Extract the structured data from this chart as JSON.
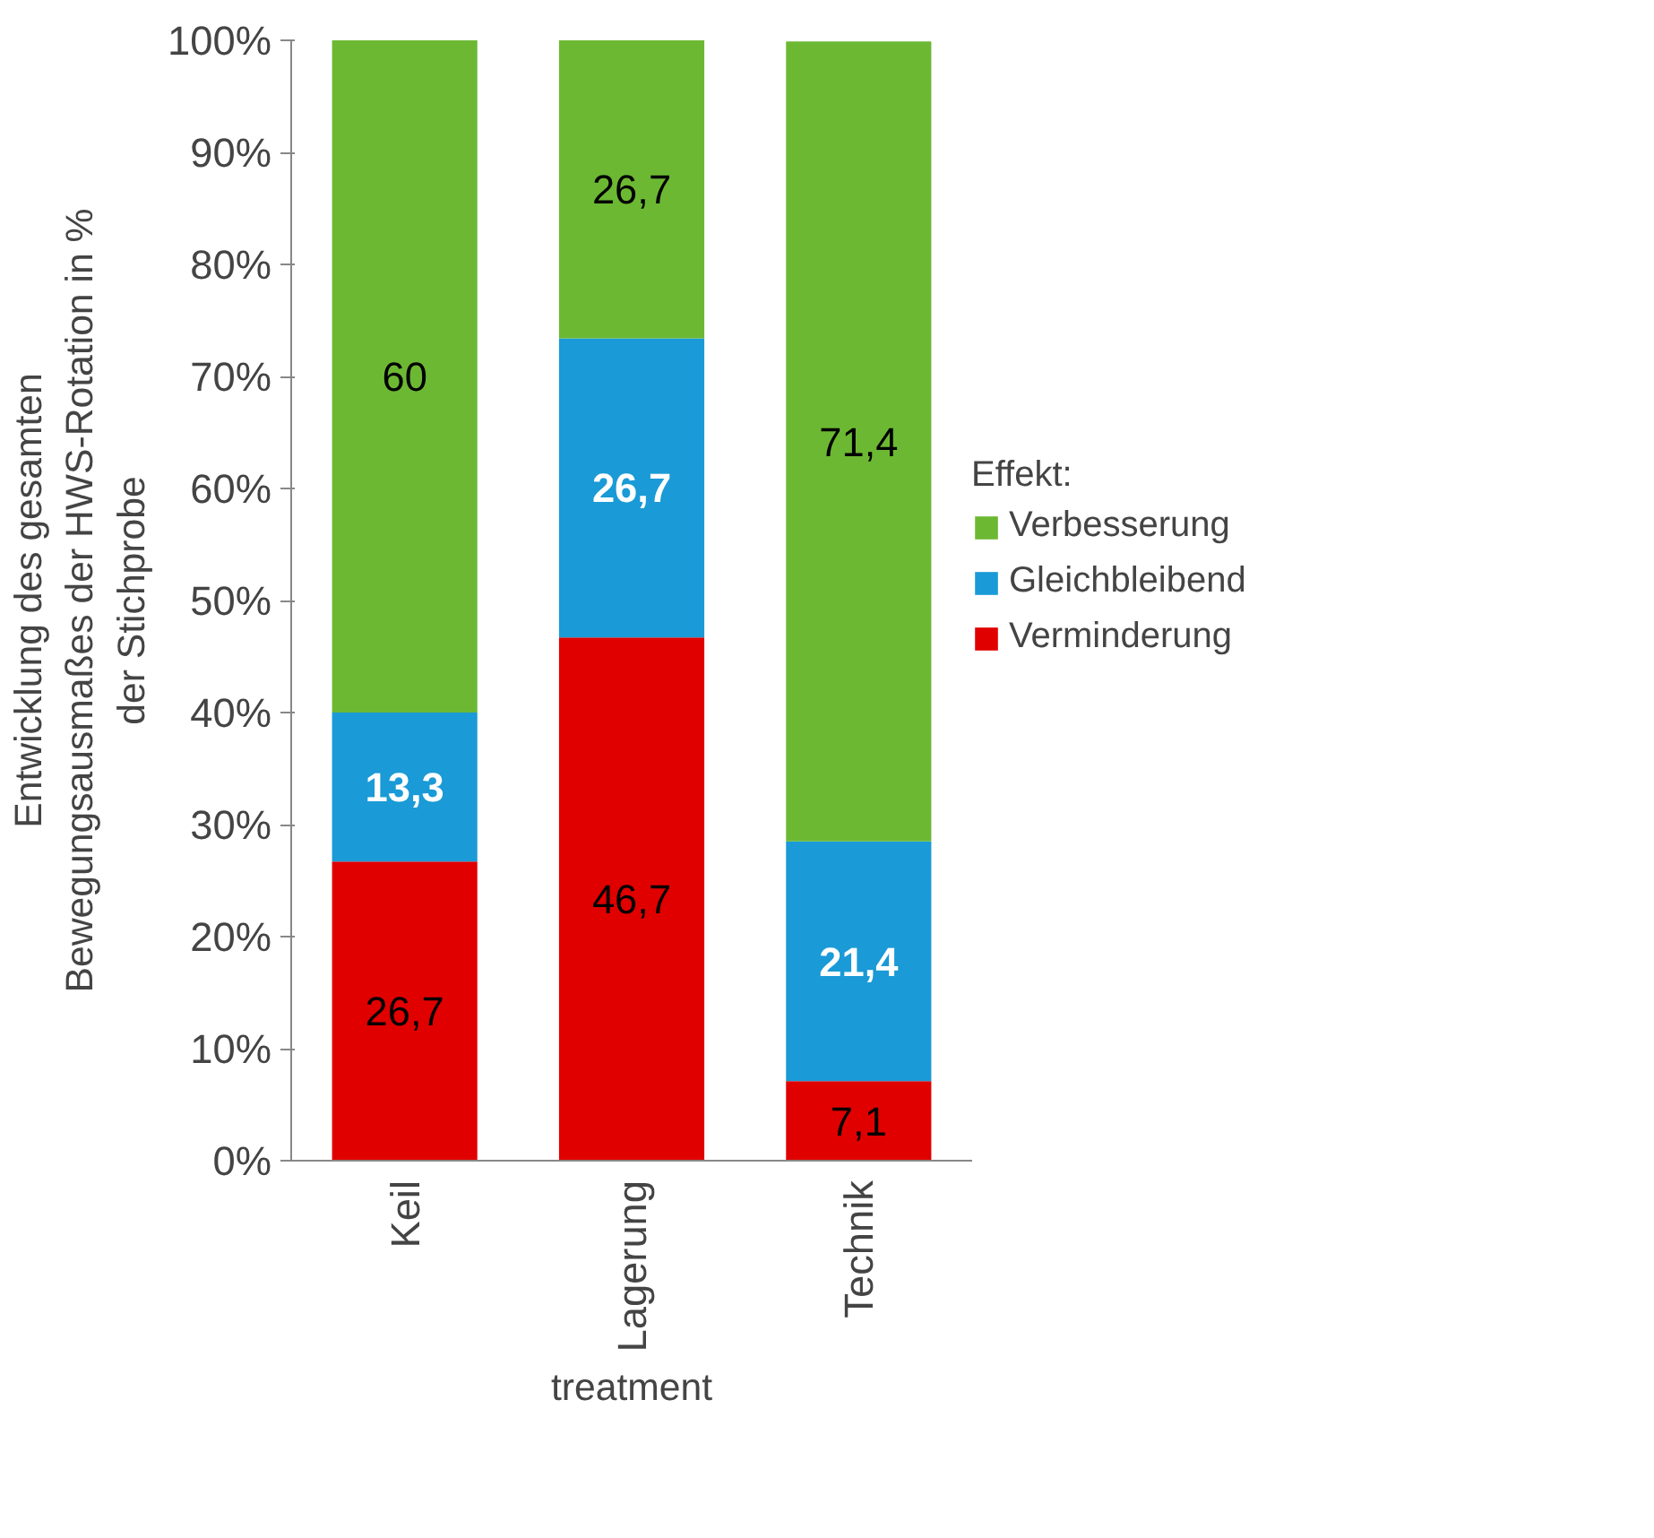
{
  "chart_data": {
    "type": "bar",
    "stacked": true,
    "xlabel": "treatment",
    "ylabel": "Entwicklung des gesamten\nBewegungsausmaßes der HWS-Rotation in %\nder Stichprobe",
    "legend_title": "Effekt:",
    "legend": "right",
    "grid": false,
    "categories": [
      "Keil",
      "Lagerung",
      "Technik"
    ],
    "series": [
      {
        "name": "Verminderung",
        "color": "#e00000",
        "values": [
          26.7,
          46.7,
          7.1
        ],
        "value_labels": [
          "26,7",
          "46,7",
          "7,1"
        ]
      },
      {
        "name": "Gleichbleibend",
        "color": "#1a9ad6",
        "values": [
          13.3,
          26.7,
          21.4
        ],
        "value_labels": [
          "13,3",
          "26,7",
          "21,4"
        ]
      },
      {
        "name": "Verbesserung",
        "color": "#6cb833",
        "values": [
          60,
          26.7,
          71.4
        ],
        "value_labels": [
          "60",
          "26,7",
          "71,4"
        ]
      }
    ],
    "ylim": [
      0,
      100
    ],
    "yticks": [
      {
        "value": 0,
        "label": "0%"
      },
      {
        "value": 10,
        "label": "10%"
      },
      {
        "value": 20,
        "label": "20%"
      },
      {
        "value": 30,
        "label": "30%"
      },
      {
        "value": 40,
        "label": "40%"
      },
      {
        "value": 50,
        "label": "50%"
      },
      {
        "value": 60,
        "label": "60%"
      },
      {
        "value": 70,
        "label": "70%"
      },
      {
        "value": 80,
        "label": "80%"
      },
      {
        "value": 90,
        "label": "90%"
      },
      {
        "value": 100,
        "label": "100%"
      }
    ]
  }
}
